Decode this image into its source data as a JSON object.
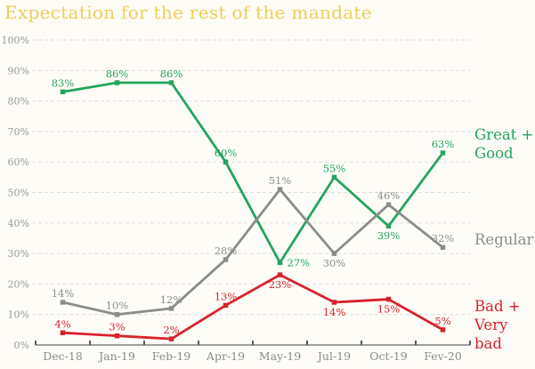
{
  "title": "Expectation for the rest of the mandate",
  "colors": {
    "title": "#efce5b",
    "background": "#fefcf7",
    "grid": "#dddddd",
    "axis_line": "#7f7f7f",
    "axis_tick": "#595959",
    "x_label": "#8c8c8c",
    "y_label": "#999999",
    "great_good": "#24a55c",
    "regular": "#8c8c8c",
    "bad_verybad": "#d6232b"
  },
  "chart_data": {
    "type": "line",
    "title": "Expectation for the rest of the mandate",
    "categories": [
      "Dec-18",
      "Jan-19",
      "Feb-19",
      "Apr-19",
      "May-19",
      "Jul-19",
      "Oct-19",
      "Fev-20"
    ],
    "y_tick_labels": [
      "0%",
      "10%",
      "20%",
      "30%",
      "40%",
      "50%",
      "60%",
      "70%",
      "80%",
      "90%",
      "100%"
    ],
    "ylim": [
      0,
      100
    ],
    "grid": true,
    "grid_style": "dashed",
    "legend_position": "right",
    "series": [
      {
        "name": "Great + Good",
        "legend_label": "Great +\nGood",
        "color": "#24a55c",
        "values": [
          83,
          86,
          86,
          60,
          27,
          55,
          39,
          63
        ],
        "data_labels": [
          "83%",
          "86%",
          "86%",
          "60%",
          "27%",
          "55%",
          "39%",
          "63%"
        ],
        "label_pos": [
          "above",
          "above",
          "above",
          "above",
          "right",
          "above",
          "below",
          "above"
        ]
      },
      {
        "name": "Regular",
        "legend_label": "Regular",
        "color": "#8c8c8c",
        "values": [
          14,
          10,
          12,
          28,
          51,
          30,
          46,
          32
        ],
        "data_labels": [
          "14%",
          "10%",
          "12%",
          "28%",
          "51%",
          "30%",
          "46%",
          "32%"
        ],
        "label_pos": [
          "above",
          "above",
          "above",
          "above",
          "above",
          "below",
          "above",
          "above"
        ]
      },
      {
        "name": "Bad + Very bad",
        "legend_label": "Bad +\nVery bad",
        "color": "#d6232b",
        "values": [
          4,
          3,
          2,
          13,
          23,
          14,
          15,
          5
        ],
        "data_labels": [
          "4%",
          "3%",
          "2%",
          "13%",
          "23%",
          "14%",
          "15%",
          "5%"
        ],
        "label_pos": [
          "above",
          "above",
          "above",
          "above",
          "below",
          "below",
          "below",
          "above"
        ]
      }
    ]
  }
}
